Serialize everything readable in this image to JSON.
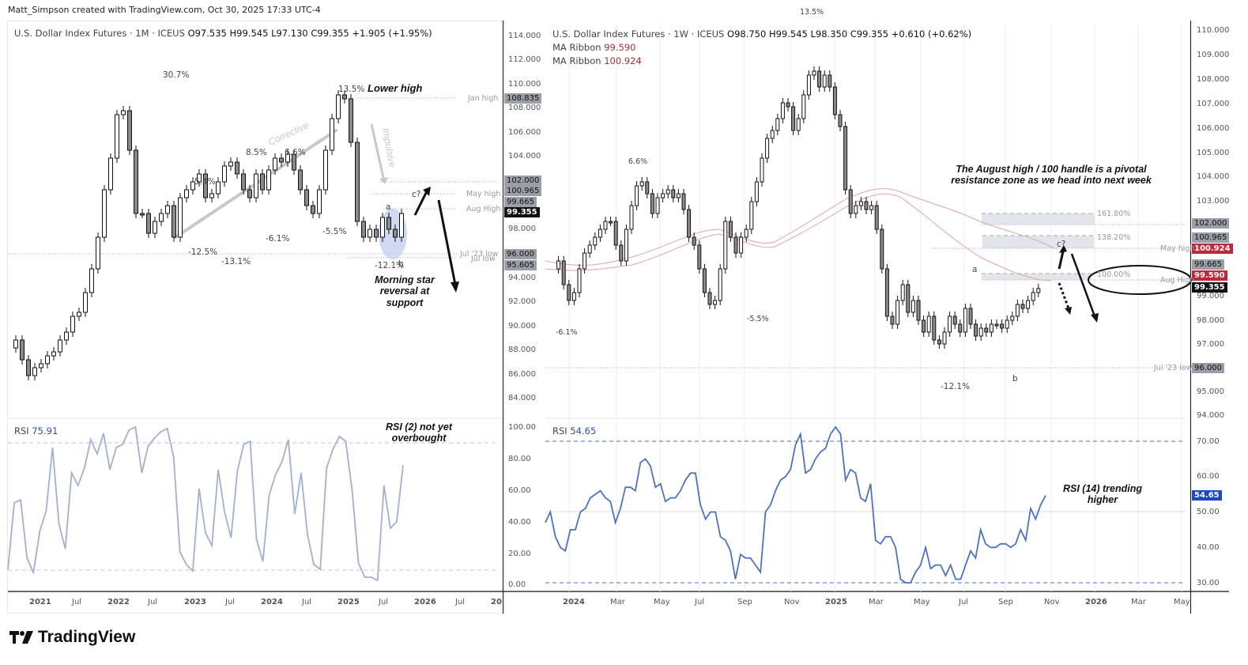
{
  "credit": "Matt_Simpson created with TradingView.com, Oct 30, 2025 17:33 UTC-4",
  "brand": {
    "logo_text": "TradingView",
    "logo_icon": "tradingview-logo-icon"
  },
  "left_chart": {
    "legend": {
      "symbol": "U.S. Dollar Index Futures · 1M · ICEUS",
      "open": "O97.535",
      "high": "H99.545",
      "low": "L97.130",
      "close": "C99.355",
      "change": "+1.905 (+1.95%)"
    },
    "price_ticks": [
      "114.000",
      "112.000",
      "110.000",
      "108.000",
      "106.000",
      "104.000",
      "98.000",
      "94.000",
      "92.000",
      "90.000",
      "88.000",
      "86.000",
      "84.000"
    ],
    "price_labels": {
      "jan_high": "108.835",
      "p102": "102.000",
      "may_high": "100.965",
      "p99665": "99.665",
      "last": "99.355",
      "jul23_low": "96.000",
      "jul_low": "95.605"
    },
    "hline_labels": {
      "jan_high": "Jan high",
      "may_high": "May high",
      "aug_high": "Aug High",
      "jul23_low": "Jul '23 low",
      "jul_low": "Jul low"
    },
    "pct_labels": {
      "p1": "30.7%",
      "p2": "13.5%",
      "p3": "5.4%",
      "p4": "8.5%",
      "p5": "6.6%",
      "p6": "-12.5%",
      "p7": "-13.1%",
      "p8": "-6.1%",
      "p9": "-5.5%",
      "p10": "-12.1%"
    },
    "wave_labels": {
      "a": "a",
      "b": "b",
      "c": "c?"
    },
    "annotations": {
      "lower_high": "Lower high",
      "corrective": "Corrective",
      "impulsive": "Impulsive",
      "morning_star_1": "Morning star",
      "morning_star_2": "reversal at",
      "morning_star_3": "support"
    },
    "rsi": {
      "label": "RSI",
      "value": "75.91",
      "ticks": [
        "100.00",
        "80.00",
        "60.00",
        "40.00",
        "20.00",
        "0.00"
      ],
      "note_1": "RSI (2) not yet",
      "note_2": "overbought"
    },
    "time_ticks": [
      "2021",
      "Jul",
      "2022",
      "Jul",
      "2023",
      "Jul",
      "2024",
      "Jul",
      "2025",
      "Jul",
      "2026",
      "Jul",
      "20"
    ]
  },
  "right_chart": {
    "legend": {
      "symbol": "U.S. Dollar Index Futures · 1W · ICEUS",
      "open": "O98.750",
      "high": "H99.545",
      "low": "L98.350",
      "close": "C99.355",
      "change": "+0.610 (+0.62%)",
      "ma1_label": "MA Ribbon",
      "ma1_value": "99.590",
      "ma2_label": "MA Ribbon",
      "ma2_value": "100.924"
    },
    "price_ticks": [
      "110.000",
      "109.000",
      "108.000",
      "107.000",
      "106.000",
      "105.000",
      "104.000",
      "103.000",
      "99.000",
      "98.000",
      "97.000",
      "95.000",
      "94.000"
    ],
    "price_labels": {
      "p102": "102.000",
      "may_high": "100.965",
      "ma2": "100.924",
      "p99665": "99.665",
      "ma1": "99.590",
      "last": "99.355",
      "jul23_low": "96.000"
    },
    "hline_labels": {
      "may_high": "May high",
      "aug_high": "Aug High",
      "jul23_low": "Jul '23 low"
    },
    "fib_labels": {
      "f1": "161.80%",
      "f2": "138.20%",
      "f3": "100.00%"
    },
    "pct_labels": {
      "p1": "6.6%",
      "p2": "-6.1%",
      "p3": "-5.5%",
      "p4": "13.5%",
      "p5": "-12.1%"
    },
    "wave_labels": {
      "a": "a",
      "b": "b",
      "c": "c?"
    },
    "annotations": {
      "pivot_1": "The August high / 100 handle is a pivotal",
      "pivot_2": "resistance zone as we head into next week"
    },
    "rsi": {
      "label": "RSI",
      "value": "54.65",
      "ticks": [
        "70.00",
        "60.00",
        "50.00",
        "40.00",
        "30.00"
      ],
      "note_1": "RSI (14) trending",
      "note_2": "higher"
    },
    "time_ticks": [
      "2024",
      "Mar",
      "May",
      "Jul",
      "Sep",
      "Nov",
      "2025",
      "Mar",
      "May",
      "Jul",
      "Sep",
      "Nov",
      "2026",
      "Mar",
      "May"
    ]
  },
  "colors": {
    "up_body": "#ffffff",
    "down_body": "#8a8a8a",
    "wick": "#111111",
    "ma_ribbon": "#e0a6a6",
    "rsi_left": "#9fb0d8",
    "rsi_right": "#4a70d0",
    "fib_zone": "#e3e5ed",
    "highlight_oval": "#c7d0f0"
  },
  "chart_data": [
    {
      "type": "candlestick",
      "title": "U.S. Dollar Index Futures · 1M · ICEUS",
      "timeframe": "1M",
      "ohlc_last": {
        "open": 97.535,
        "high": 99.545,
        "low": 97.13,
        "close": 99.355,
        "change": 1.905,
        "change_pct": 1.95
      },
      "ylim": [
        83,
        115
      ],
      "x_ticks": [
        "2021",
        "Jul",
        "2022",
        "Jul",
        "2023",
        "Jul",
        "2024",
        "Jul",
        "2025",
        "Jul",
        "2026",
        "Jul"
      ],
      "key_levels": {
        "Jan high": 108.835,
        "102": 102.0,
        "May high": 100.965,
        "Aug High": 99.665,
        "Jul '23 low": 96.0,
        "Jul low": 95.605
      },
      "swing_pct": [
        "30.7%",
        "13.5%",
        "5.4%",
        "8.5%",
        "6.6%",
        "-12.5%",
        "-13.1%",
        "-6.1%",
        "-5.5%",
        "-12.1%"
      ],
      "annotations": [
        "Lower high",
        "Corrective",
        "Impulsive",
        "Morning star reversal at support",
        "a",
        "b",
        "c?"
      ],
      "indicator": {
        "name": "RSI (2)",
        "value": 75.91,
        "ylim": [
          0,
          100
        ],
        "levels": [
          10,
          90
        ],
        "values": [
          10,
          52,
          54,
          17,
          8,
          34,
          47,
          87,
          39,
          23,
          71,
          63,
          74,
          92,
          83,
          96,
          73,
          87,
          89,
          98,
          100,
          71,
          88,
          93,
          97,
          99,
          81,
          21,
          13,
          9,
          61,
          33,
          25,
          73,
          46,
          30,
          72,
          89,
          91,
          29,
          15,
          57,
          70,
          78,
          92,
          45,
          71,
          32,
          13,
          10,
          74,
          86,
          94,
          91,
          60,
          14,
          5,
          5,
          3,
          63,
          36,
          40,
          75.91
        ]
      },
      "note": "RSI (2) not yet overbought"
    },
    {
      "type": "candlestick",
      "title": "U.S. Dollar Index Futures · 1W · ICEUS",
      "timeframe": "1W",
      "ohlc_last": {
        "open": 98.75,
        "high": 99.545,
        "low": 98.35,
        "close": 99.355,
        "change": 0.61,
        "change_pct": 0.62
      },
      "ylim": [
        93.8,
        110.3
      ],
      "x_ticks": [
        "2024",
        "Mar",
        "May",
        "Jul",
        "Sep",
        "Nov",
        "2025",
        "Mar",
        "May",
        "Jul",
        "Sep",
        "Nov",
        "2026",
        "Mar",
        "May"
      ],
      "overlays": [
        {
          "name": "MA Ribbon",
          "value": 99.59
        },
        {
          "name": "MA Ribbon",
          "value": 100.924
        }
      ],
      "key_levels": {
        "102": 102.0,
        "May high": 100.965,
        "Aug High": 99.665,
        "Jul '23 low": 96.0
      },
      "fib_extensions": {
        "161.80%": 102.2,
        "138.20%": 101.2,
        "100.00%": 99.7
      },
      "swing_pct": [
        "6.6%",
        "-6.1%",
        "-5.5%",
        "13.5%",
        "-12.1%"
      ],
      "annotations": [
        "The August high / 100 handle is a pivotal resistance zone as we head into next week",
        "a",
        "b",
        "c?"
      ],
      "indicator": {
        "name": "RSI (14)",
        "value": 54.65,
        "ylim": [
          27,
          77
        ],
        "levels": [
          30,
          50,
          70
        ],
        "values": [
          47,
          50,
          43,
          40,
          39,
          45,
          45,
          50,
          51,
          54,
          55,
          56,
          54,
          53,
          47,
          51,
          57,
          57,
          56,
          64,
          65,
          63,
          57,
          58,
          53,
          54,
          54,
          56,
          59,
          61,
          61,
          52,
          48,
          50,
          50,
          43,
          42,
          39,
          31,
          38,
          37,
          37,
          35,
          33,
          50,
          52,
          56,
          59,
          60,
          62,
          69,
          72,
          61,
          62,
          65,
          67,
          68,
          72,
          74,
          72,
          59,
          62,
          61,
          54,
          53,
          58,
          42,
          41,
          43,
          43,
          40,
          31,
          30,
          30,
          33,
          35,
          40,
          34,
          35,
          35,
          32,
          35,
          31,
          31,
          35,
          39,
          37,
          45,
          41,
          40,
          40,
          41,
          41,
          40,
          41,
          45,
          42,
          51,
          48,
          52,
          54.65
        ]
      },
      "note": "RSI (14) trending higher"
    }
  ]
}
